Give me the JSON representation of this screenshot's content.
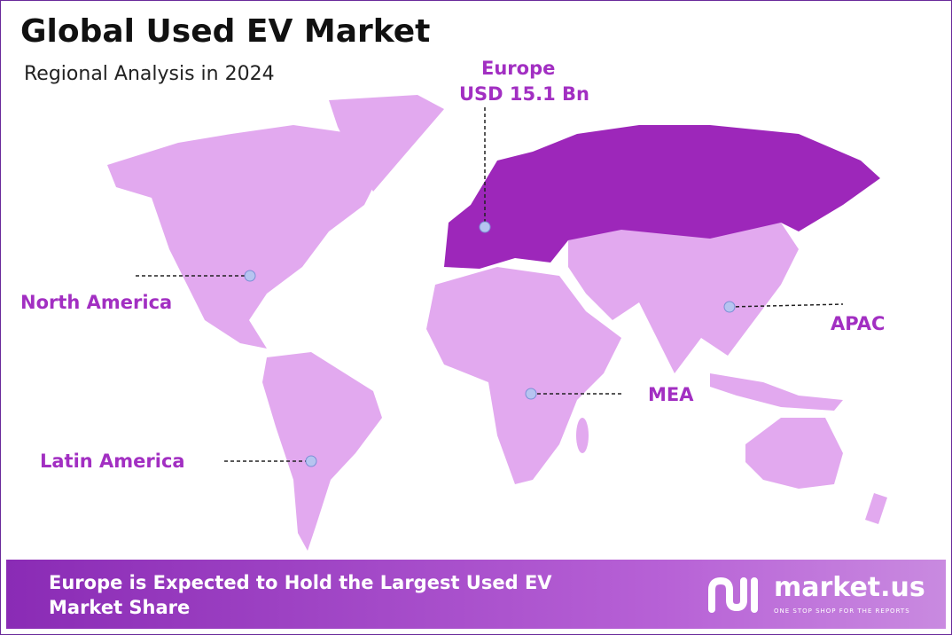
{
  "header": {
    "title": "Global Used EV Market",
    "subtitle": "Regional Analysis in 2024"
  },
  "regions": [
    {
      "name": "Europe",
      "value_label": "USD 15.1 Bn"
    },
    {
      "name": "North America"
    },
    {
      "name": "APAC"
    },
    {
      "name": "MEA"
    },
    {
      "name": "Latin America"
    }
  ],
  "footer": {
    "text": "Europe is Expected to Hold the Largest Used EV Market Share",
    "brand": "market.us",
    "tagline": "ONE STOP SHOP FOR THE REPORTS"
  }
}
